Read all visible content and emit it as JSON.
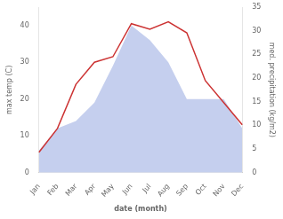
{
  "chart_data": {
    "type": "line",
    "categories": [
      "Jan",
      "Feb",
      "Mar",
      "Apr",
      "May",
      "Jun",
      "Jul",
      "Aug",
      "Sep",
      "Oct",
      "Nov",
      "Dec"
    ],
    "xlabel": "date (month)",
    "ylabel": "max temp (C)",
    "y2label": "med. precipitation (kg/m2)",
    "series": [
      {
        "type": "area",
        "color": "#c5cfee",
        "values": [
          6.0,
          12.0,
          14.0,
          19.0,
          29.0,
          40.0,
          36.0,
          30.0,
          20.0,
          20.0,
          20.0,
          12.0
        ]
      },
      {
        "type": "line",
        "color": "#cc3333",
        "values": [
          5.5,
          12.0,
          24.0,
          30.0,
          31.5,
          40.5,
          39.0,
          41.0,
          38.0,
          25.0,
          19.0,
          13.0
        ]
      }
    ],
    "ylim": [
      0,
      45
    ],
    "yticks": [
      0,
      10,
      20,
      30,
      40
    ],
    "y2lim": [
      0,
      35
    ],
    "y2ticks": [
      0,
      5,
      10,
      15,
      20,
      25,
      30,
      35
    ],
    "grid": false
  }
}
